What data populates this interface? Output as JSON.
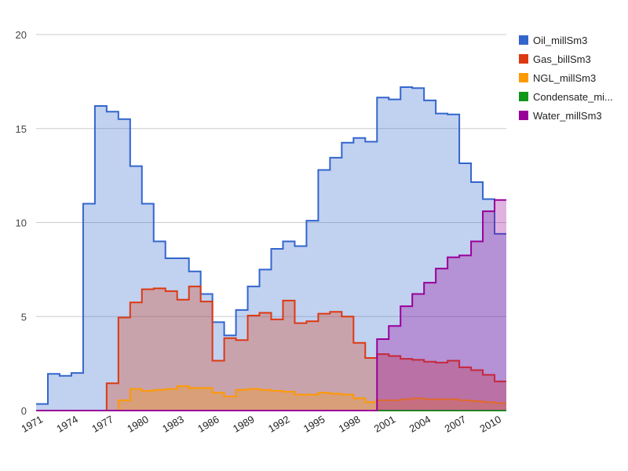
{
  "chart_data": {
    "type": "area",
    "step": true,
    "title": "",
    "xlabel": "",
    "ylabel": "",
    "ylim": [
      0,
      20
    ],
    "y_ticks": [
      0,
      5,
      10,
      15,
      20
    ],
    "y_tick_labels": [
      "0",
      "5",
      "10",
      "15",
      "20"
    ],
    "x_ticks": [
      1971,
      1974,
      1977,
      1980,
      1983,
      1986,
      1989,
      1992,
      1995,
      1998,
      2001,
      2004,
      2007,
      2010
    ],
    "x_tick_labels": [
      "1971",
      "1974",
      "1977",
      "1980",
      "1983",
      "1986",
      "1989",
      "1992",
      "1995",
      "1998",
      "2001",
      "2004",
      "2007",
      "2010"
    ],
    "grid": true,
    "legend_position": "right",
    "x": [
      1971,
      1972,
      1973,
      1974,
      1975,
      1976,
      1977,
      1978,
      1979,
      1980,
      1981,
      1982,
      1983,
      1984,
      1985,
      1986,
      1987,
      1988,
      1989,
      1990,
      1991,
      1992,
      1993,
      1994,
      1995,
      1996,
      1997,
      1998,
      1999,
      2000,
      2001,
      2002,
      2003,
      2004,
      2005,
      2006,
      2007,
      2008,
      2009,
      2010
    ],
    "series": [
      {
        "name": "Oil_millSm3",
        "color": "#3366cc",
        "values": [
          0.35,
          1.95,
          1.85,
          2.0,
          11.0,
          16.2,
          15.9,
          15.5,
          13.0,
          11.0,
          9.0,
          8.1,
          8.1,
          7.4,
          6.2,
          4.7,
          4.0,
          5.35,
          6.6,
          7.5,
          8.6,
          9.0,
          8.75,
          10.1,
          12.8,
          13.45,
          14.25,
          14.5,
          14.3,
          16.65,
          16.55,
          17.2,
          17.15,
          16.5,
          15.8,
          15.75,
          13.15,
          12.15,
          11.25,
          9.4
        ]
      },
      {
        "name": "Gas_billSm3",
        "color": "#dc3912",
        "values": [
          0,
          0,
          0,
          0,
          0,
          0,
          1.45,
          4.95,
          5.75,
          6.45,
          6.5,
          6.35,
          5.9,
          6.6,
          5.8,
          2.65,
          3.85,
          3.75,
          5.05,
          5.2,
          4.85,
          5.85,
          4.65,
          4.75,
          5.15,
          5.25,
          5.0,
          3.6,
          2.8,
          3.0,
          2.9,
          2.75,
          2.7,
          2.6,
          2.55,
          2.65,
          2.3,
          2.15,
          1.9,
          1.55
        ]
      },
      {
        "name": "NGL_millSm3",
        "color": "#ff9900",
        "values": [
          0,
          0,
          0,
          0,
          0,
          0,
          0,
          0.55,
          1.15,
          1.05,
          1.1,
          1.15,
          1.3,
          1.2,
          1.2,
          0.95,
          0.75,
          1.1,
          1.15,
          1.1,
          1.05,
          1.0,
          0.85,
          0.85,
          0.95,
          0.9,
          0.85,
          0.65,
          0.45,
          0.55,
          0.55,
          0.6,
          0.65,
          0.6,
          0.6,
          0.6,
          0.55,
          0.5,
          0.45,
          0.4
        ]
      },
      {
        "name": "Condensate_mi...",
        "color": "#109618",
        "values": [
          0,
          0,
          0,
          0,
          0,
          0,
          0,
          0,
          0,
          0,
          0,
          0,
          0,
          0,
          0,
          0,
          0,
          0,
          0,
          0,
          0,
          0,
          0,
          0,
          0,
          0,
          0,
          0,
          0,
          0,
          0,
          0,
          0,
          0,
          0,
          0,
          0,
          0,
          0,
          0
        ]
      },
      {
        "name": "Water_millSm3",
        "color": "#990099",
        "values": [
          0,
          0,
          0,
          0,
          0,
          0,
          0,
          0,
          0,
          0,
          0,
          0,
          0,
          0,
          0,
          0,
          0,
          0,
          0,
          0,
          0,
          0,
          0,
          0,
          0,
          0,
          0,
          0,
          0,
          3.8,
          4.5,
          5.55,
          6.2,
          6.8,
          7.55,
          8.15,
          8.25,
          9.0,
          10.6,
          11.2
        ]
      }
    ]
  }
}
